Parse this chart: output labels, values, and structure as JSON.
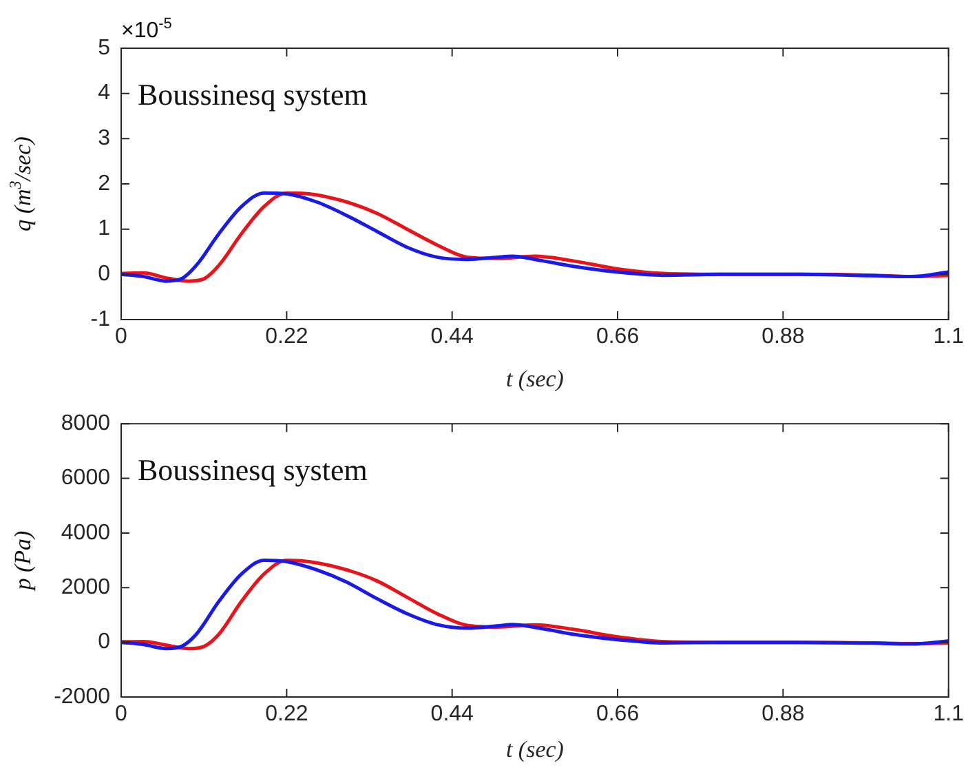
{
  "chart_data": [
    {
      "type": "line",
      "ylabel": "q (m$^{3}$/sec)",
      "xlabel": "t (sec)",
      "annotations": [
        "Boussinesq system",
        "×10$^{-5}$"
      ],
      "xlim": [
        0,
        1.1
      ],
      "xticks": [
        0,
        0.22,
        0.44,
        0.66,
        0.88,
        1.1
      ],
      "ylim": [
        -1,
        5
      ],
      "yticks": [
        -1,
        0,
        1,
        2,
        3,
        4,
        5
      ],
      "grid": false,
      "legend": false,
      "marker": "none",
      "line_style": "solid",
      "series": [
        {
          "color": "#1a1ae6",
          "x": [
            0,
            0.03,
            0.06,
            0.08,
            0.1,
            0.13,
            0.16,
            0.19,
            0.22,
            0.26,
            0.3,
            0.34,
            0.38,
            0.42,
            0.46,
            0.5,
            0.52,
            0.56,
            0.6,
            0.66,
            0.72,
            0.8,
            0.9,
            1.0,
            1.05,
            1.1
          ],
          "values": [
            0,
            -0.05,
            -0.15,
            -0.1,
            0.2,
            0.9,
            1.5,
            1.8,
            1.78,
            1.6,
            1.3,
            0.95,
            0.6,
            0.38,
            0.33,
            0.38,
            0.4,
            0.3,
            0.18,
            0.05,
            -0.02,
            0,
            0,
            -0.03,
            -0.05,
            0.05
          ]
        },
        {
          "color": "#e8141c",
          "x": [
            0,
            0.03,
            0.06,
            0.09,
            0.11,
            0.13,
            0.16,
            0.19,
            0.22,
            0.25,
            0.3,
            0.34,
            0.38,
            0.42,
            0.46,
            0.5,
            0.55,
            0.6,
            0.66,
            0.72,
            0.8,
            0.9,
            1.0,
            1.05,
            1.1
          ],
          "values": [
            0.02,
            0.03,
            -0.08,
            -0.15,
            -0.1,
            0.2,
            0.9,
            1.5,
            1.8,
            1.78,
            1.6,
            1.35,
            1.0,
            0.65,
            0.38,
            0.35,
            0.4,
            0.3,
            0.12,
            0.02,
            0,
            0,
            -0.02,
            -0.05,
            -0.02
          ]
        }
      ]
    },
    {
      "type": "line",
      "ylabel": "p (Pa)",
      "xlabel": "t (sec)",
      "annotations": [
        "Boussinesq system"
      ],
      "xlim": [
        0,
        1.1
      ],
      "xticks": [
        0,
        0.22,
        0.44,
        0.66,
        0.88,
        1.1
      ],
      "ylim": [
        -2000,
        8000
      ],
      "yticks": [
        -2000,
        0,
        2000,
        4000,
        6000,
        8000
      ],
      "grid": false,
      "legend": false,
      "marker": "none",
      "line_style": "solid",
      "series": [
        {
          "color": "#1a1ae6",
          "x": [
            0,
            0.03,
            0.06,
            0.08,
            0.1,
            0.13,
            0.16,
            0.19,
            0.22,
            0.26,
            0.3,
            0.34,
            0.38,
            0.42,
            0.46,
            0.5,
            0.52,
            0.56,
            0.6,
            0.66,
            0.72,
            0.8,
            0.9,
            1.0,
            1.05,
            1.1
          ],
          "values": [
            0,
            -80,
            -230,
            -150,
            300,
            1500,
            2500,
            3000,
            2950,
            2650,
            2200,
            1600,
            1050,
            650,
            520,
            600,
            650,
            500,
            300,
            100,
            -20,
            0,
            0,
            -30,
            -60,
            50
          ]
        },
        {
          "color": "#e8141c",
          "x": [
            0,
            0.03,
            0.06,
            0.09,
            0.11,
            0.13,
            0.16,
            0.19,
            0.22,
            0.25,
            0.3,
            0.34,
            0.38,
            0.42,
            0.46,
            0.5,
            0.55,
            0.6,
            0.66,
            0.72,
            0.8,
            0.9,
            1.0,
            1.05,
            1.1
          ],
          "values": [
            20,
            30,
            -100,
            -230,
            -150,
            300,
            1500,
            2500,
            3000,
            2950,
            2650,
            2250,
            1650,
            1050,
            620,
            560,
            640,
            480,
            200,
            30,
            0,
            0,
            -20,
            -50,
            -20
          ]
        }
      ]
    }
  ]
}
